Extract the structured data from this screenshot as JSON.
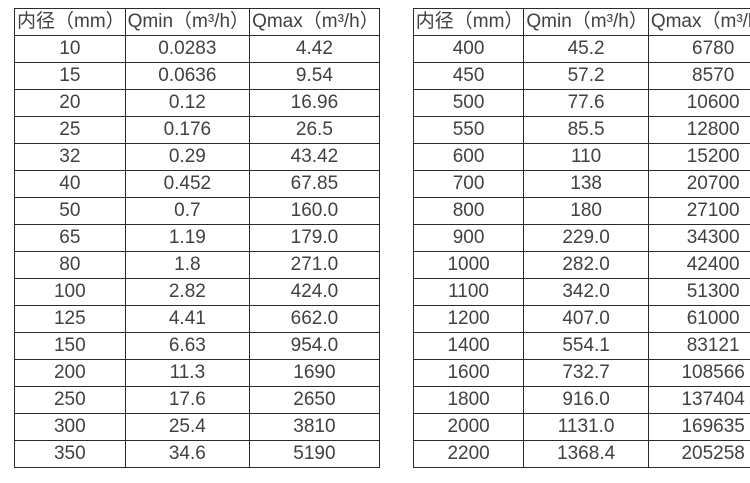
{
  "page": {
    "background": "#ffffff",
    "text_color": "#414141",
    "border_color": "#2b2b2b"
  },
  "tables": [
    {
      "headers": [
        "内径（mm）",
        "Qmin（m³/h）",
        "Qmax（m³/h）"
      ],
      "rows": [
        [
          "10",
          "0.0283",
          "4.42"
        ],
        [
          "15",
          "0.0636",
          "9.54"
        ],
        [
          "20",
          "0.12",
          "16.96"
        ],
        [
          "25",
          "0.176",
          "26.5"
        ],
        [
          "32",
          "0.29",
          "43.42"
        ],
        [
          "40",
          "0.452",
          "67.85"
        ],
        [
          "50",
          "0.7",
          "160.0"
        ],
        [
          "65",
          "1.19",
          "179.0"
        ],
        [
          "80",
          "1.8",
          "271.0"
        ],
        [
          "100",
          "2.82",
          "424.0"
        ],
        [
          "125",
          "4.41",
          "662.0"
        ],
        [
          "150",
          "6.63",
          "954.0"
        ],
        [
          "200",
          "11.3",
          "1690"
        ],
        [
          "250",
          "17.6",
          "2650"
        ],
        [
          "300",
          "25.4",
          "3810"
        ],
        [
          "350",
          "34.6",
          "5190"
        ]
      ]
    },
    {
      "headers": [
        "内径（mm）",
        "Qmin（m³/h）",
        "Qmax（m³/h）"
      ],
      "rows": [
        [
          "400",
          "45.2",
          "6780"
        ],
        [
          "450",
          "57.2",
          "8570"
        ],
        [
          "500",
          "77.6",
          "10600"
        ],
        [
          "550",
          "85.5",
          "12800"
        ],
        [
          "600",
          "110",
          "15200"
        ],
        [
          "700",
          "138",
          "20700"
        ],
        [
          "800",
          "180",
          "27100"
        ],
        [
          "900",
          "229.0",
          "34300"
        ],
        [
          "1000",
          "282.0",
          "42400"
        ],
        [
          "1100",
          "342.0",
          "51300"
        ],
        [
          "1200",
          "407.0",
          "61000"
        ],
        [
          "1400",
          "554.1",
          "83121"
        ],
        [
          "1600",
          "732.7",
          "108566"
        ],
        [
          "1800",
          "916.0",
          "137404"
        ],
        [
          "2000",
          "1131.0",
          "169635"
        ],
        [
          "2200",
          "1368.4",
          "205258"
        ]
      ]
    }
  ]
}
